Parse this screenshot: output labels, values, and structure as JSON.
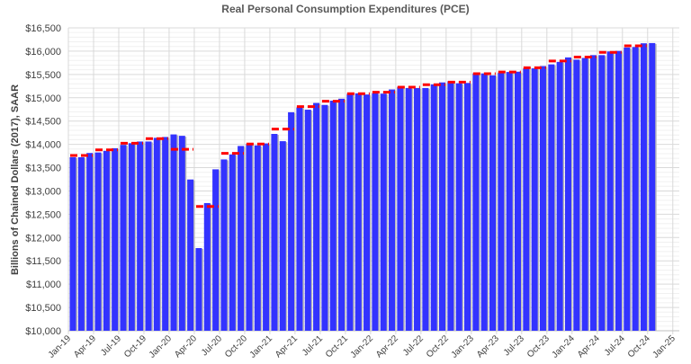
{
  "chart_data": {
    "type": "bar",
    "title": "Real Personal Consumption Expenditures (PCE)",
    "xlabel": "",
    "ylabel": "Billions of Chained Dollars (2017), SAAR",
    "ylim": [
      10000,
      16500
    ],
    "ytick_step": 500,
    "ytick_format": "$#,###",
    "grid": true,
    "bar_color": "#3333FF",
    "quarterly_color": "#FF0000",
    "x_start": "2019-01",
    "x_frequency": "monthly",
    "x_tick_labels": [
      "Jan-19",
      "Apr-19",
      "Jul-19",
      "Oct-19",
      "Jan-20",
      "Apr-20",
      "Jul-20",
      "Oct-20",
      "Jan-21",
      "Apr-21",
      "Jul-21",
      "Oct-21",
      "Jan-22",
      "Apr-22",
      "Jul-22",
      "Oct-22",
      "Jan-23",
      "Apr-23",
      "Jul-23",
      "Oct-23",
      "Jan-24",
      "Apr-24",
      "Jul-24",
      "Oct-24",
      "Jan-25"
    ],
    "series": [
      {
        "type": "bar",
        "values": [
          13724,
          13724,
          13815,
          13826,
          13862,
          13917,
          13989,
          14025,
          14061,
          14061,
          14140,
          14158,
          14213,
          14183,
          13246,
          11774,
          12740,
          13464,
          13676,
          13784,
          13965,
          14007,
          13978,
          14020,
          14224,
          14068,
          14689,
          14792,
          14744,
          14888,
          14846,
          14937,
          14979,
          15082,
          15094,
          15070,
          15094,
          15088,
          15178,
          15233,
          15209,
          15209,
          15209,
          15287,
          15329,
          15354,
          15311,
          15318,
          15522,
          15522,
          15481,
          15540,
          15553,
          15559,
          15631,
          15631,
          15680,
          15716,
          15770,
          15866,
          15818,
          15854,
          15915,
          15915,
          15993,
          16005,
          16078,
          16089,
          16169,
          16174
        ]
      },
      {
        "type": "quarterly-dash",
        "values": [
          13760,
          13881,
          14025,
          14122,
          13893,
          12667,
          13808,
          14007,
          14327,
          14810,
          14925,
          15088,
          15118,
          15227,
          15281,
          15336,
          15517,
          15553,
          15643,
          15788,
          15872,
          15975,
          16114
        ]
      }
    ]
  }
}
